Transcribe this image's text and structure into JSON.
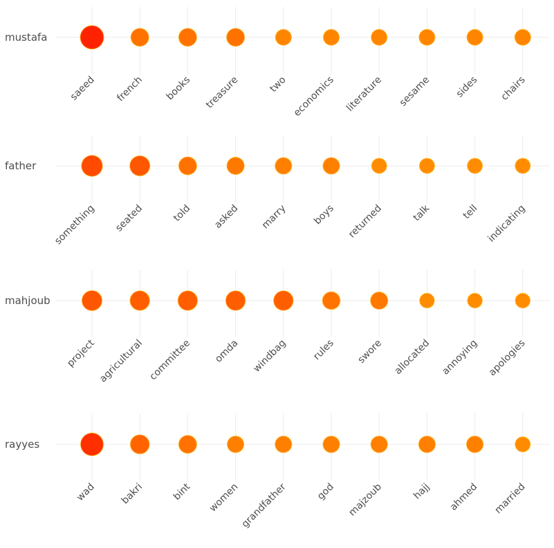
{
  "chart_data": {
    "type": "scatter",
    "title": "",
    "xlabel": "",
    "ylabel": "",
    "grid": true,
    "color_scale": {
      "low": "#ff8c00",
      "high": "#ff2200"
    },
    "panels": [
      {
        "name": "mustafa",
        "terms": [
          "saeed",
          "french",
          "books",
          "treasure",
          "two",
          "economics",
          "literature",
          "sesame",
          "sides",
          "chairs"
        ],
        "values": [
          10,
          4,
          4,
          4,
          2.5,
          2.5,
          2.5,
          2.5,
          2.5,
          2.5
        ]
      },
      {
        "name": "father",
        "terms": [
          "something",
          "seated",
          "told",
          "asked",
          "marry",
          "boys",
          "returned",
          "talk",
          "tell",
          "indicating"
        ],
        "values": [
          7,
          6,
          4,
          3.5,
          3,
          3,
          2,
          2,
          2,
          2
        ]
      },
      {
        "name": "mahjoub",
        "terms": [
          "project",
          "agricultural",
          "committee",
          "omda",
          "windbag",
          "rules",
          "swore",
          "allocated",
          "annoying",
          "apologies"
        ],
        "values": [
          6,
          5.5,
          5.5,
          5.5,
          5.5,
          3.8,
          3.5,
          1.8,
          1.8,
          1.8
        ]
      },
      {
        "name": "rayyes",
        "terms": [
          "wad",
          "bakri",
          "bint",
          "women",
          "grandfather",
          "god",
          "majzoub",
          "hajj",
          "ahmed",
          "married"
        ],
        "values": [
          9,
          5,
          4,
          3,
          3,
          3,
          3,
          3,
          3,
          2
        ]
      }
    ]
  }
}
